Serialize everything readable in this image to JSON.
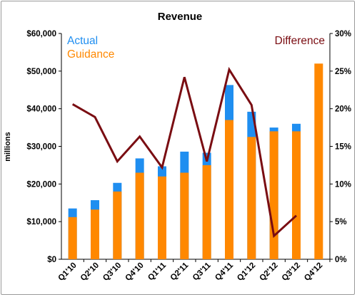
{
  "chart_data": {
    "type": "bar",
    "title": "Revenue",
    "ylabel": "millions",
    "categories": [
      "Q1'10",
      "Q2'10",
      "Q3'10",
      "Q4'10",
      "Q1'11",
      "Q2'11",
      "Q3'11",
      "Q4'11",
      "Q1'12",
      "Q2'12",
      "Q3'12",
      "Q4'12"
    ],
    "ylim": [
      0,
      60000
    ],
    "y_ticks": [
      "$0",
      "$10,000",
      "$20,000",
      "$30,000",
      "$40,000",
      "$50,000",
      "$60,000"
    ],
    "y2lim": [
      0,
      30
    ],
    "y2_ticks": [
      "0%",
      "5%",
      "10%",
      "15%",
      "20%",
      "25%",
      "30%"
    ],
    "series": [
      {
        "name": "Actual",
        "type": "bar",
        "color": "#1f8ef0",
        "values": [
          13500,
          15700,
          20300,
          26800,
          24700,
          28600,
          28300,
          46300,
          39200,
          35000,
          36000,
          null
        ]
      },
      {
        "name": "Guidance",
        "type": "bar",
        "color": "#ff8800",
        "values": [
          11200,
          13200,
          18000,
          23000,
          22000,
          23000,
          25000,
          37000,
          32500,
          34000,
          34000,
          52000
        ]
      },
      {
        "name": "Difference",
        "type": "line",
        "axis": "right",
        "color": "#7a0d12",
        "values": [
          20.6,
          18.9,
          13.0,
          16.3,
          12.2,
          24.2,
          13.0,
          25.2,
          20.5,
          3.1,
          5.8,
          null
        ]
      }
    ],
    "legend": [
      "top-left",
      "top-right"
    ],
    "grid": false
  }
}
